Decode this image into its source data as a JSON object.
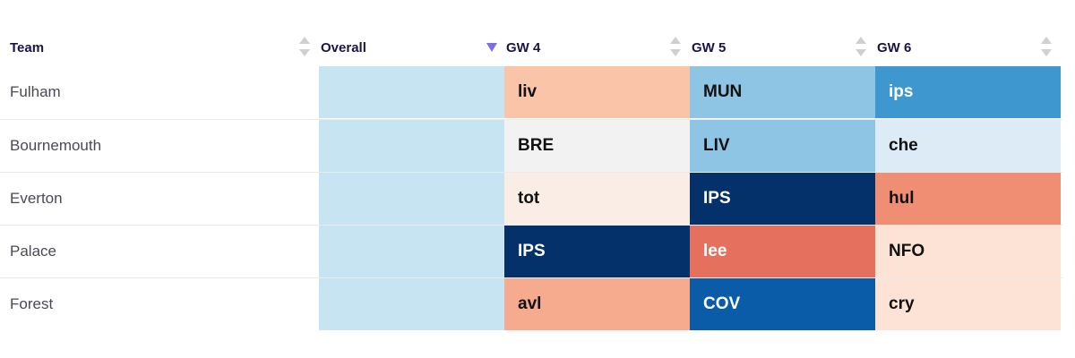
{
  "header": {
    "team": "Team",
    "overall": "Overall",
    "gameweeks": [
      "GW 4",
      "GW 5",
      "GW 6"
    ]
  },
  "overall_color": "#c7e4f2",
  "rows": [
    {
      "team": "Fulham",
      "fixtures": [
        {
          "label": "liv",
          "bg": "#f9c4a8",
          "fg": "#111111"
        },
        {
          "label": "MUN",
          "bg": "#8ec5e4",
          "fg": "#111111"
        },
        {
          "label": "ips",
          "bg": "#3f97d0",
          "fg": "#ffffff"
        }
      ]
    },
    {
      "team": "Bournemouth",
      "fixtures": [
        {
          "label": "BRE",
          "bg": "#f2f2f2",
          "fg": "#111111"
        },
        {
          "label": "LIV",
          "bg": "#8ec5e4",
          "fg": "#111111"
        },
        {
          "label": "che",
          "bg": "#dcebf6",
          "fg": "#111111"
        }
      ]
    },
    {
      "team": "Everton",
      "fixtures": [
        {
          "label": "tot",
          "bg": "#f9ede6",
          "fg": "#111111"
        },
        {
          "label": "IPS",
          "bg": "#05316a",
          "fg": "#ffffff"
        },
        {
          "label": "hul",
          "bg": "#f08e74",
          "fg": "#111111"
        }
      ]
    },
    {
      "team": "Palace",
      "fixtures": [
        {
          "label": "IPS",
          "bg": "#05316a",
          "fg": "#ffffff"
        },
        {
          "label": "lee",
          "bg": "#e5705d",
          "fg": "#ffffff"
        },
        {
          "label": "NFO",
          "bg": "#fde3d6",
          "fg": "#111111"
        }
      ]
    },
    {
      "team": "Forest",
      "fixtures": [
        {
          "label": "avl",
          "bg": "#f7ab8e",
          "fg": "#111111"
        },
        {
          "label": "COV",
          "bg": "#0b5ca8",
          "fg": "#ffffff"
        },
        {
          "label": "cry",
          "bg": "#fde3d6",
          "fg": "#111111"
        }
      ]
    }
  ]
}
